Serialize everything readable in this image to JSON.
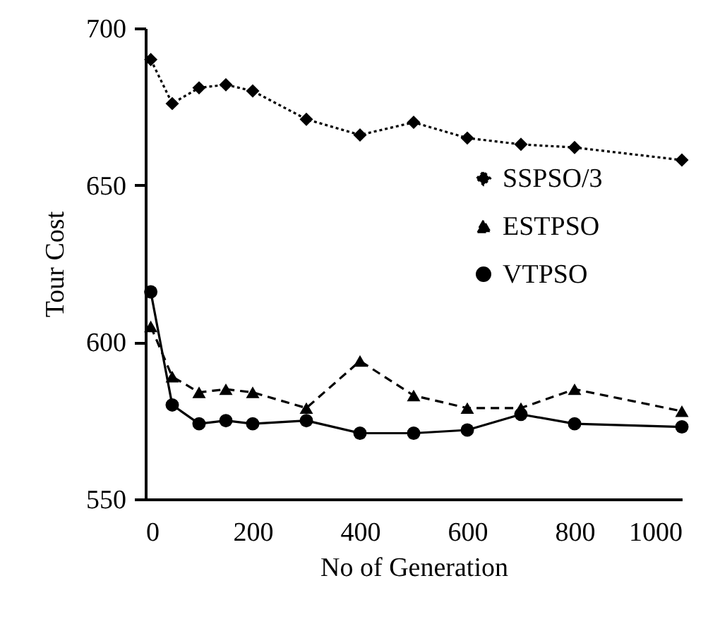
{
  "chart_data": {
    "type": "line",
    "xlabel": "No of Generation",
    "ylabel": "Tour  Cost",
    "x": [
      10,
      50,
      100,
      150,
      200,
      300,
      400,
      500,
      600,
      700,
      800,
      1000
    ],
    "xlim": [
      0,
      1000
    ],
    "xticks": [
      0,
      200,
      400,
      600,
      800,
      1000
    ],
    "ylim": [
      550,
      700
    ],
    "yticks": [
      550,
      600,
      650,
      700
    ],
    "grid": false,
    "legend": "right",
    "series": [
      {
        "name": "SSPSO/3",
        "color": "#000000",
        "marker": "diamond",
        "line_style": "dotted",
        "values": [
          690,
          676,
          681,
          682,
          680,
          671,
          666,
          670,
          665,
          663,
          662,
          658
        ]
      },
      {
        "name": "ESTPSO",
        "color": "#000000",
        "marker": "triangle",
        "line_style": "dashed",
        "values": [
          605,
          589,
          584,
          585,
          584,
          579,
          594,
          583,
          579,
          579,
          585,
          578
        ]
      },
      {
        "name": "VTPSO",
        "color": "#000000",
        "marker": "circle",
        "line_style": "solid",
        "values": [
          616,
          580,
          574,
          575,
          574,
          575,
          571,
          571,
          572,
          577,
          574,
          573
        ]
      }
    ]
  }
}
